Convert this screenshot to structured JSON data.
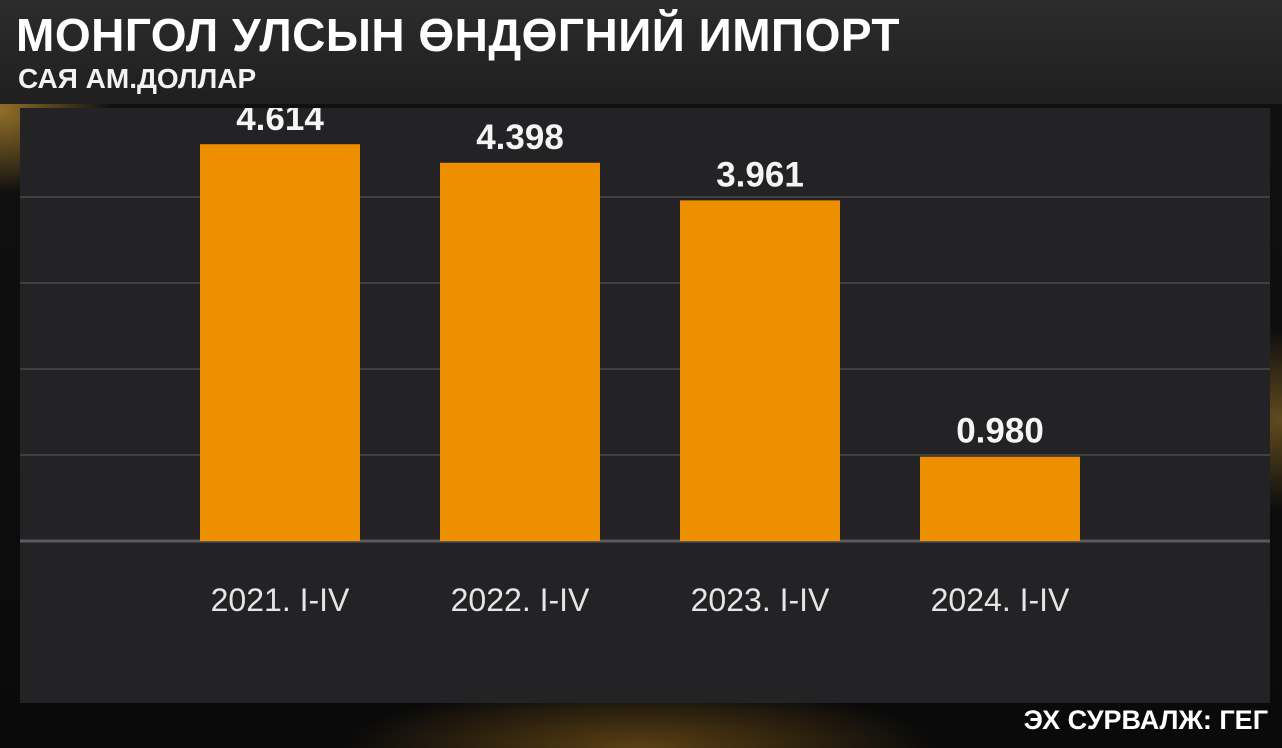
{
  "header": {
    "title": "МОНГОЛ УЛСЫН ӨНДӨГНИЙ ИМПОРТ",
    "subtitle": "САЯ АМ.ДОЛЛАР"
  },
  "footer": {
    "source": "ЭХ СУРВАЛЖ: ГЕГ"
  },
  "colors": {
    "bar": "#ee8f00",
    "panel": "#232325",
    "text": "#ffffff"
  },
  "chart_data": {
    "type": "bar",
    "categories": [
      "2021. I-IV",
      "2022. I-IV",
      "2023. I-IV",
      "2024. I-IV"
    ],
    "values": [
      4.614,
      4.398,
      3.961,
      0.98
    ],
    "value_labels": [
      "4.614",
      "4.398",
      "3.961",
      "0.980"
    ],
    "ylim": [
      0,
      5
    ],
    "grid": true,
    "legend": "none"
  }
}
